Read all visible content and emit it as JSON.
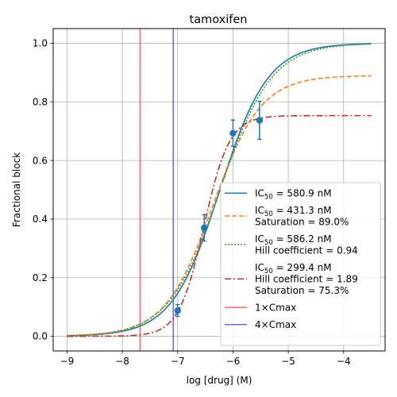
{
  "chart_data": {
    "type": "line",
    "title": "tamoxifen",
    "xlabel": "log [drug] (M)",
    "ylabel": "Fractional block",
    "xlim": [
      -9.25,
      -3.25
    ],
    "ylim": [
      -0.05,
      1.05
    ],
    "grid": true,
    "legend_position": "lower-right",
    "xticks": [
      -9,
      -8,
      -7,
      -6,
      -5,
      -4
    ],
    "xtick_labels": [
      "−9",
      "−8",
      "−7",
      "−6",
      "−5",
      "−4"
    ],
    "yticks": [
      0.0,
      0.2,
      0.4,
      0.6,
      0.8,
      1.0
    ],
    "ytick_labels": [
      "0.0",
      "0.2",
      "0.4",
      "0.6",
      "0.8",
      "1.0"
    ],
    "x_range_curves": [
      -9.0,
      -3.5
    ],
    "series": [
      {
        "label_lines": [
          [
            "IC",
            "50",
            " = 580.9 nM"
          ]
        ],
        "ic50_nM": 580.9,
        "hill": 1.0,
        "saturation": 1.0,
        "color": "#1f77b4",
        "style": "solid"
      },
      {
        "label_lines": [
          [
            "IC",
            "50",
            " = 431.3 nM"
          ],
          [
            "Saturation = 89.0%"
          ]
        ],
        "ic50_nM": 431.3,
        "hill": 1.0,
        "saturation": 0.89,
        "color": "#ff7f0e",
        "style": "dashed"
      },
      {
        "label_lines": [
          [
            "IC",
            "50",
            " = 586.2 nM"
          ],
          [
            "Hill coefficient = 0.94"
          ]
        ],
        "ic50_nM": 586.2,
        "hill": 0.94,
        "saturation": 1.0,
        "color": "#2ca02c",
        "style": "dotted"
      },
      {
        "label_lines": [
          [
            "IC",
            "50",
            " = 299.4 nM"
          ],
          [
            "Hill coefficient = 1.89"
          ],
          [
            "Saturation = 75.3%"
          ]
        ],
        "ic50_nM": 299.4,
        "hill": 1.89,
        "saturation": 0.753,
        "color": "#d62728",
        "style": "dashdot"
      }
    ],
    "vlines": [
      {
        "label": "1×Cmax",
        "x": -7.68,
        "color": "#ff6666"
      },
      {
        "label": "4×Cmax",
        "x": -7.08,
        "color": "#6666ff"
      }
    ],
    "data_points": {
      "color": "#1f77b4",
      "points": [
        {
          "x": -7.0,
          "y": 0.088,
          "err": 0.02
        },
        {
          "x": -6.52,
          "y": 0.37,
          "err": 0.045
        },
        {
          "x": -6.0,
          "y": 0.693,
          "err": 0.045
        },
        {
          "x": -5.52,
          "y": 0.737,
          "err": 0.065
        }
      ]
    }
  }
}
